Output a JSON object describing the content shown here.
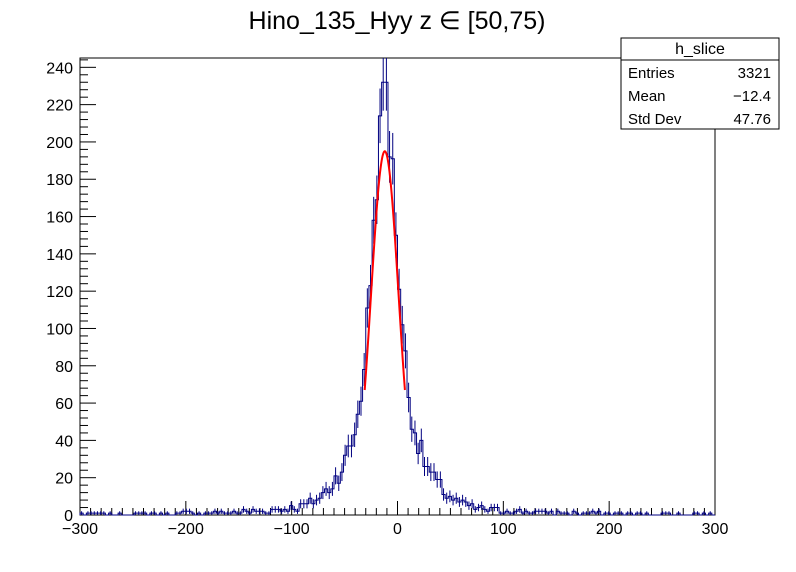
{
  "chart_data": {
    "type": "histogram",
    "title": "Hino_135_Hyy z  ∈ [50,75)",
    "xlabel": "",
    "ylabel": "",
    "xlim": [
      -300,
      300
    ],
    "ylim": [
      0,
      245
    ],
    "x_ticks": [
      -300,
      -200,
      -100,
      0,
      100,
      200,
      300
    ],
    "x_tick_labels": [
      "−300",
      "−200",
      "−100",
      "0",
      "100",
      "200",
      "300"
    ],
    "y_ticks": [
      0,
      20,
      40,
      60,
      80,
      100,
      120,
      140,
      160,
      180,
      200,
      220,
      240
    ],
    "y_tick_labels": [
      "0",
      "20",
      "40",
      "60",
      "80",
      "100",
      "120",
      "140",
      "160",
      "180",
      "200",
      "220",
      "240"
    ],
    "histogram": {
      "color": "#000080",
      "bin_width": 3,
      "range": [
        -300,
        300
      ],
      "peak_x": -12,
      "peak_count": 232,
      "approx_tail_level_at_100": 4
    },
    "fit": {
      "color": "#ff0000",
      "function": "gaussian",
      "amplitude": 195,
      "mean": -12,
      "sigma": 13,
      "x_range": [
        -31,
        7
      ]
    },
    "stats_box": {
      "title": "h_slice",
      "rows": [
        {
          "label": "Entries",
          "value": "3321"
        },
        {
          "label": "Mean",
          "value": "−12.4"
        },
        {
          "label": "Std Dev",
          "value": "47.76"
        }
      ]
    },
    "grid": false,
    "legend": "top-right stats box"
  }
}
